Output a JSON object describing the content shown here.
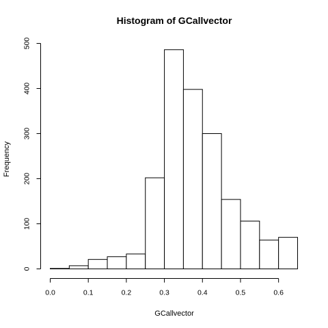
{
  "chart_data": {
    "type": "bar",
    "title": "Histogram of GCallvector",
    "xlabel": "GCallvector",
    "ylabel": "Frequency",
    "bin_edges": [
      0.0,
      0.05,
      0.1,
      0.15,
      0.2,
      0.25,
      0.3,
      0.35,
      0.4,
      0.45,
      0.5,
      0.55,
      0.6,
      0.65
    ],
    "values": [
      1,
      7,
      21,
      27,
      33,
      202,
      486,
      398,
      300,
      154,
      106,
      64,
      70
    ],
    "xlim": [
      0.0,
      0.65
    ],
    "ylim": [
      0,
      500
    ],
    "x_ticks": [
      0.0,
      0.1,
      0.2,
      0.3,
      0.4,
      0.5,
      0.6
    ],
    "x_tick_labels": [
      "0.0",
      "0.1",
      "0.2",
      "0.3",
      "0.4",
      "0.5",
      "0.6"
    ],
    "y_ticks": [
      0,
      100,
      200,
      300,
      400,
      500
    ],
    "y_tick_labels": [
      "0",
      "100",
      "200",
      "300",
      "400",
      "500"
    ],
    "grid": false,
    "bar_fill": "#ffffff",
    "bar_stroke": "#000000"
  }
}
